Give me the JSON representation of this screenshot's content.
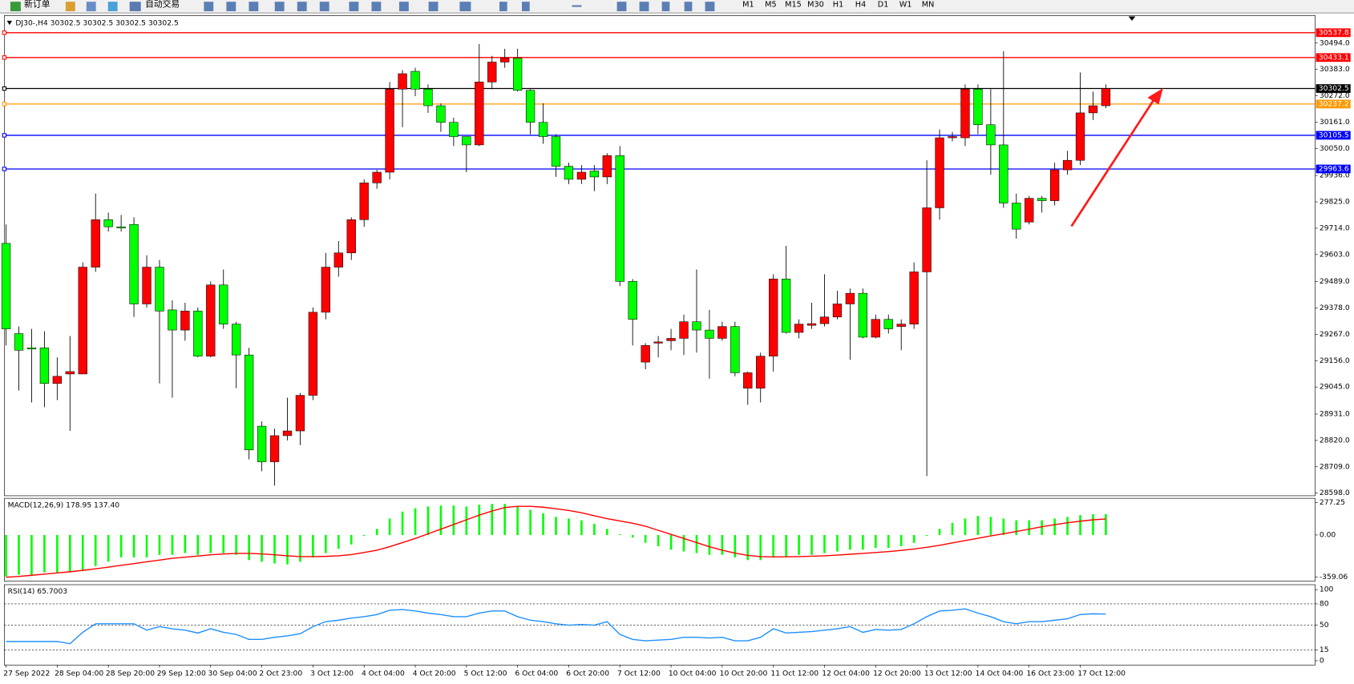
{
  "toolbar": {
    "new_order": "新订单",
    "auto_trading": "自动交易",
    "timeframes": [
      "M1",
      "M5",
      "M15",
      "M30",
      "H1",
      "H4",
      "D1",
      "W1",
      "MN"
    ]
  },
  "chart_data": [
    {
      "type": "candlestick",
      "title": "DJ30-,H4  30302.5 30302.5 30302.5 30302.5",
      "up_color": "#ff0000",
      "down_color": "#00ff00",
      "categories": [
        "27 Sep 2022",
        null,
        null,
        null,
        "28 Sep 04:00",
        null,
        null,
        null,
        "28 Sep 20:00",
        null,
        null,
        null,
        "29 Sep 12:00",
        null,
        null,
        null,
        "30 Sep 04:00",
        null,
        null,
        null,
        "2 Oct 23:00",
        null,
        null,
        null,
        "3 Oct 12:00",
        null,
        null,
        null,
        "4 Oct 04:00",
        null,
        null,
        null,
        "4 Oct 20:00",
        null,
        null,
        null,
        "5 Oct 12:00",
        null,
        null,
        null,
        "6 Oct 04:00",
        null,
        null,
        null,
        "6 Oct 20:00",
        null,
        null,
        null,
        "7 Oct 12:00",
        null,
        null,
        null,
        "10 Oct 04:00",
        null,
        null,
        null,
        "10 Oct 20:00",
        null,
        null,
        null,
        "11 Oct 12:00",
        null,
        null,
        null,
        "12 Oct 04:00",
        null,
        null,
        null,
        "12 Oct 20:00",
        null,
        null,
        null,
        "13 Oct 12:00",
        null,
        null,
        null,
        "14 Oct 04:00",
        null,
        null,
        null,
        "16 Oct 23:00",
        null,
        null,
        null,
        "17 Oct 12:00",
        null,
        null
      ],
      "open": [
        29650,
        29270,
        29210,
        29210,
        29060,
        29100,
        29100,
        29550,
        29750,
        29720,
        29730,
        29395,
        29550,
        29370,
        29285,
        29365,
        29175,
        29475,
        29310,
        29180,
        28880,
        28730,
        28840,
        28860,
        29010,
        29360,
        29550,
        29610,
        29750,
        29905,
        29950,
        30300,
        30375,
        30300,
        30230,
        30160,
        30100,
        30065,
        30330,
        30414,
        30430,
        30295,
        30160,
        30100,
        29975,
        29920,
        29955,
        29930,
        30020,
        29490,
        29150,
        29230,
        29240,
        29250,
        29320,
        29285,
        29250,
        29300,
        29040,
        29040,
        29175,
        29500,
        29275,
        29305,
        29312,
        29340,
        29395,
        29440,
        29255,
        29330,
        29300,
        29310,
        29530,
        29800,
        30095,
        30095,
        30300,
        30150,
        30065,
        29820,
        29740,
        29840,
        29830,
        29960,
        30000,
        30200,
        30230
      ],
      "high": [
        29730,
        29300,
        29290,
        29280,
        29170,
        29260,
        29570,
        29860,
        29780,
        29770,
        29760,
        29600,
        29580,
        29410,
        29400,
        29380,
        29490,
        29540,
        29320,
        29210,
        28900,
        28870,
        29000,
        29020,
        29380,
        29610,
        29660,
        29760,
        29920,
        29960,
        30330,
        30380,
        30390,
        30320,
        30240,
        30180,
        30100,
        30490,
        30440,
        30470,
        30470,
        30300,
        30240,
        30110,
        29990,
        29980,
        29980,
        30030,
        30060,
        29500,
        29230,
        29260,
        29290,
        29350,
        29540,
        29370,
        29320,
        29320,
        29110,
        29190,
        29520,
        29640,
        29330,
        29400,
        29520,
        29450,
        29460,
        29460,
        29350,
        29350,
        29330,
        29570,
        30000,
        30130,
        30120,
        30320,
        30320,
        30300,
        30460,
        29860,
        29850,
        29850,
        29990,
        30040,
        30370,
        30290,
        30320
      ],
      "low": [
        29220,
        29030,
        28980,
        28960,
        28990,
        28860,
        29100,
        29530,
        29700,
        29700,
        29340,
        29380,
        29060,
        29000,
        29240,
        29170,
        29170,
        29290,
        29040,
        28740,
        28690,
        28630,
        28820,
        28800,
        28990,
        29330,
        29510,
        29580,
        29720,
        29880,
        29920,
        30140,
        30270,
        30200,
        30120,
        30060,
        29950,
        30060,
        30300,
        30390,
        30290,
        30110,
        30070,
        29930,
        29900,
        29900,
        29870,
        29900,
        29470,
        29220,
        29120,
        29170,
        29200,
        29180,
        29190,
        29080,
        29240,
        29090,
        28970,
        28980,
        29110,
        29270,
        29250,
        29290,
        29300,
        29330,
        29160,
        29250,
        29250,
        29270,
        29200,
        29290,
        28670,
        29750,
        30080,
        30060,
        30110,
        29940,
        29800,
        29670,
        29730,
        29780,
        29810,
        29940,
        29980,
        30170,
        30220
      ],
      "close": [
        29290,
        29200,
        29205,
        29060,
        29090,
        29110,
        29550,
        29750,
        29720,
        29715,
        29395,
        29550,
        29365,
        29285,
        29365,
        29175,
        29475,
        29310,
        29180,
        28780,
        28730,
        28840,
        28860,
        29010,
        29360,
        29550,
        29610,
        29750,
        29905,
        29950,
        30300,
        30365,
        30300,
        30230,
        30160,
        30100,
        30065,
        30330,
        30414,
        30430,
        30295,
        30160,
        30100,
        29975,
        29920,
        29950,
        29930,
        30020,
        29490,
        29330,
        29220,
        29235,
        29250,
        29320,
        29285,
        29250,
        29300,
        29105,
        29105,
        29175,
        29500,
        29275,
        29310,
        29312,
        29340,
        29395,
        29440,
        29255,
        29330,
        29290,
        29310,
        29530,
        29800,
        30095,
        30100,
        30300,
        30150,
        30065,
        29820,
        29710,
        29840,
        29830,
        29960,
        30000,
        30200,
        30230,
        30302.5
      ],
      "lines": [
        {
          "value": 30537.8,
          "color": "#ff0000"
        },
        {
          "value": 30433.1,
          "color": "#ff0000"
        },
        {
          "value": 30302.5,
          "color": "#000000"
        },
        {
          "value": 30237.2,
          "color": "#ff9900"
        },
        {
          "value": 30105.5,
          "color": "#0000ff"
        },
        {
          "value": 29963.6,
          "color": "#0000ff"
        }
      ],
      "ylim": [
        28587,
        30610
      ],
      "yticks": [
        {
          "value": 30494,
          "label": "30494.0"
        },
        {
          "value": 30383,
          "label": "30383.0"
        },
        {
          "value": 30272,
          "label": "30272.0"
        },
        {
          "value": 30161,
          "label": "30161.0"
        },
        {
          "value": 30050,
          "label": "30050.0"
        },
        {
          "value": 29936,
          "label": "29936.0"
        },
        {
          "value": 29825,
          "label": "29825.0"
        },
        {
          "value": 29714,
          "label": "29714.0"
        },
        {
          "value": 29603,
          "label": "29603.0"
        },
        {
          "value": 29489,
          "label": "29489.0"
        },
        {
          "value": 29378,
          "label": "29378.0"
        },
        {
          "value": 29267,
          "label": "29267.0"
        },
        {
          "value": 29156,
          "label": "29156.0"
        },
        {
          "value": 29045,
          "label": "29045.0"
        },
        {
          "value": 28931,
          "label": "28931.0"
        },
        {
          "value": 28820,
          "label": "28820.0"
        },
        {
          "value": 28709,
          "label": "28709.0"
        },
        {
          "value": 28598,
          "label": "28598.0"
        }
      ]
    },
    {
      "type": "macd",
      "title": "MACD(12,26,9) 178.95 137.40",
      "series": [
        {
          "type": "bar",
          "color": "#00ff00",
          "values": [
            -355,
            -340,
            -340,
            -320,
            -320,
            -320,
            -303,
            -266,
            -229,
            -192,
            -192,
            -192,
            -170,
            -170,
            -155,
            -170,
            -155,
            -155,
            -170,
            -215,
            -229,
            -244,
            -252,
            -229,
            -192,
            -155,
            -118,
            -81,
            -7,
            52,
            141,
            200,
            229,
            244,
            252,
            252,
            244,
            259,
            266,
            266,
            244,
            215,
            185,
            155,
            141,
            126,
            96,
            52,
            7,
            -22,
            -67,
            -96,
            -126,
            -141,
            -155,
            -170,
            -170,
            -192,
            -215,
            -215,
            -192,
            -185,
            -170,
            -170,
            -155,
            -141,
            -126,
            -126,
            -111,
            -111,
            -96,
            -67,
            -7,
            52,
            104,
            141,
            163,
            155,
            141,
            126,
            126,
            126,
            141,
            155,
            170,
            178,
            178.95
          ]
        },
        {
          "type": "line",
          "color": "#ff0000",
          "values": [
            -362,
            -355,
            -345,
            -335,
            -325,
            -315,
            -303,
            -290,
            -275,
            -260,
            -245,
            -230,
            -215,
            -200,
            -190,
            -180,
            -170,
            -163,
            -158,
            -158,
            -162,
            -170,
            -178,
            -185,
            -185,
            -183,
            -178,
            -168,
            -150,
            -130,
            -100,
            -65,
            -30,
            10,
            50,
            90,
            130,
            170,
            205,
            235,
            245,
            245,
            238,
            225,
            210,
            190,
            165,
            140,
            120,
            100,
            75,
            40,
            5,
            -30,
            -65,
            -100,
            -130,
            -155,
            -175,
            -185,
            -188,
            -187,
            -185,
            -182,
            -178,
            -172,
            -165,
            -158,
            -150,
            -142,
            -132,
            -120,
            -105,
            -88,
            -68,
            -48,
            -28,
            -8,
            10,
            30,
            50,
            70,
            88,
            105,
            118,
            130,
            137.4
          ]
        }
      ],
      "ylim": [
        -396,
        314
      ],
      "yticks": [
        277.25,
        {
          "value": 0,
          "label": "0.00"
        },
        -359.06
      ]
    },
    {
      "type": "rsi",
      "title": "RSI(14) 65.7003",
      "series": [
        {
          "type": "line",
          "color": "#1e90ff",
          "values": [
            27,
            27,
            27,
            27,
            27,
            24,
            40,
            52,
            52,
            52,
            52,
            43,
            48,
            45,
            43,
            39,
            45,
            40,
            37,
            30,
            30,
            33,
            35,
            38,
            48,
            55,
            57,
            60,
            62,
            65,
            71,
            72,
            70,
            67,
            65,
            62,
            62,
            67,
            70,
            70,
            62,
            57,
            55,
            52,
            50,
            51,
            50,
            55,
            37,
            30,
            28,
            29,
            30,
            33,
            33,
            32,
            33,
            28,
            28,
            33,
            45,
            39,
            40,
            41,
            43,
            45,
            48,
            40,
            44,
            43,
            44,
            52,
            62,
            70,
            71,
            73,
            67,
            62,
            55,
            52,
            55,
            55,
            57,
            59,
            65,
            66,
            65.7003
          ]
        }
      ],
      "levels": [
        80,
        50,
        15
      ],
      "ylim": [
        -6,
        107
      ],
      "yticks": [
        100,
        80,
        50,
        15,
        0
      ]
    }
  ]
}
